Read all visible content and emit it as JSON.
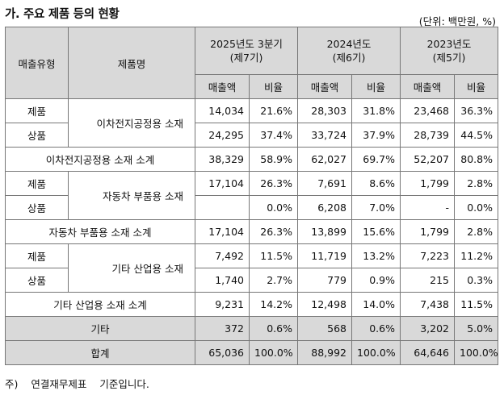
{
  "title": "가. 주요 제품 등의 현황",
  "unit": "(단위: 백만원, %)",
  "headers": {
    "type": "매출유형",
    "product": "제품명",
    "year1": "2025년도 3분기",
    "year1_sub": "(제7기)",
    "year2": "2024년도",
    "year2_sub": "(제6기)",
    "year3": "2023년도",
    "year3_sub": "(제5기)",
    "sales": "매출액",
    "ratio": "비율"
  },
  "rows": [
    {
      "type": "제품",
      "product": "이차전지공정용 소재",
      "v": [
        "14,034",
        "21.6%",
        "28,303",
        "31.8%",
        "23,468",
        "36.3%"
      ]
    },
    {
      "type": "상품",
      "v": [
        "24,295",
        "37.4%",
        "33,724",
        "37.9%",
        "28,739",
        "44.5%"
      ]
    },
    {
      "label": "이차전지공정용 소재 소계",
      "v": [
        "38,329",
        "58.9%",
        "62,027",
        "69.7%",
        "52,207",
        "80.8%"
      ]
    },
    {
      "type": "제품",
      "product": "자동차 부품용 소재",
      "v": [
        "17,104",
        "26.3%",
        "7,691",
        "8.6%",
        "1,799",
        "2.8%"
      ]
    },
    {
      "type": "상품",
      "v": [
        "",
        "0.0%",
        "6,208",
        "7.0%",
        "-",
        "0.0%"
      ]
    },
    {
      "label": "자동차 부품용 소재 소계",
      "v": [
        "17,104",
        "26.3%",
        "13,899",
        "15.6%",
        "1,799",
        "2.8%"
      ]
    },
    {
      "type": "제품",
      "product": "기타 산업용 소재",
      "v": [
        "7,492",
        "11.5%",
        "11,719",
        "13.2%",
        "7,223",
        "11.2%"
      ]
    },
    {
      "type": "상품",
      "v": [
        "1,740",
        "2.7%",
        "779",
        "0.9%",
        "215",
        "0.3%"
      ]
    },
    {
      "label": "기타 산업용 소재 소계",
      "v": [
        "9,231",
        "14.2%",
        "12,498",
        "14.0%",
        "7,438",
        "11.5%"
      ]
    },
    {
      "label": "기타",
      "v": [
        "372",
        "0.6%",
        "568",
        "0.6%",
        "3,202",
        "5.0%"
      ]
    },
    {
      "label": "합계",
      "v": [
        "65,036",
        "100.0%",
        "88,992",
        "100.0%",
        "64,646",
        "100.0%"
      ]
    }
  ],
  "footnote": {
    "mark": "주)",
    "text": "연결재무제표 기준입니다."
  }
}
